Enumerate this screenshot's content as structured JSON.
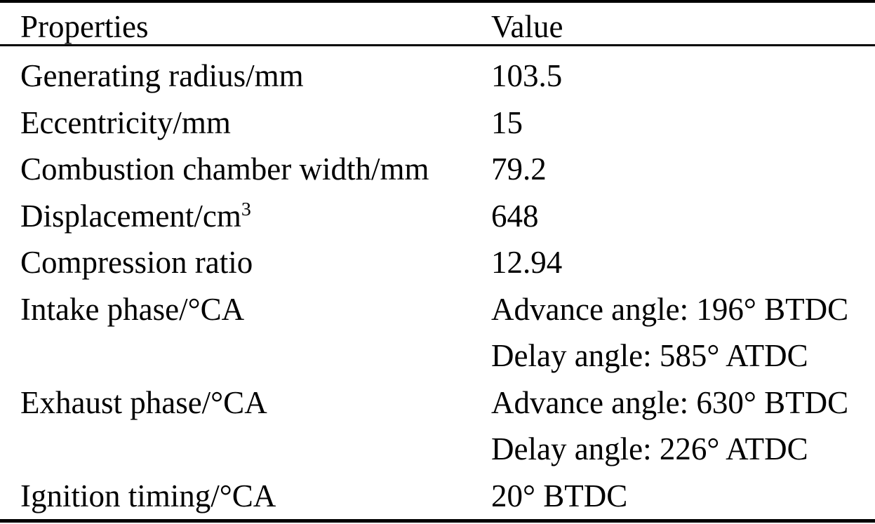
{
  "colors": {
    "background": "#ffffff",
    "text": "#000000",
    "rule": "#000000"
  },
  "table": {
    "header": {
      "properties_label": "Properties",
      "value_label": "Value"
    },
    "rows": [
      {
        "property": "Generating radius/mm",
        "values": [
          "103.5"
        ]
      },
      {
        "property": "Eccentricity/mm",
        "values": [
          "15"
        ]
      },
      {
        "property": "Combustion chamber width/mm",
        "values": [
          "79.2"
        ]
      },
      {
        "property": "Displacement/cm",
        "property_sup": "3",
        "values": [
          "648"
        ]
      },
      {
        "property": "Compression ratio",
        "values": [
          "12.94"
        ]
      },
      {
        "property": "Intake phase/°CA",
        "values": [
          "Advance angle: 196° BTDC",
          "Delay angle: 585° ATDC"
        ]
      },
      {
        "property": "Exhaust phase/°CA",
        "values": [
          "Advance angle: 630° BTDC",
          "Delay angle: 226° ATDC"
        ]
      },
      {
        "property": "Ignition timing/°CA",
        "values": [
          "20° BTDC"
        ]
      }
    ]
  },
  "chart_data": {
    "type": "table",
    "columns": [
      "Properties",
      "Value"
    ],
    "rows": [
      [
        "Generating radius/mm",
        "103.5"
      ],
      [
        "Eccentricity/mm",
        "15"
      ],
      [
        "Combustion chamber width/mm",
        "79.2"
      ],
      [
        "Displacement/cm³",
        "648"
      ],
      [
        "Compression ratio",
        "12.94"
      ],
      [
        "Intake phase/°CA",
        "Advance angle: 196° BTDC; Delay angle: 585° ATDC"
      ],
      [
        "Exhaust phase/°CA",
        "Advance angle: 630° BTDC; Delay angle: 226° ATDC"
      ],
      [
        "Ignition timing/°CA",
        "20° BTDC"
      ]
    ]
  }
}
